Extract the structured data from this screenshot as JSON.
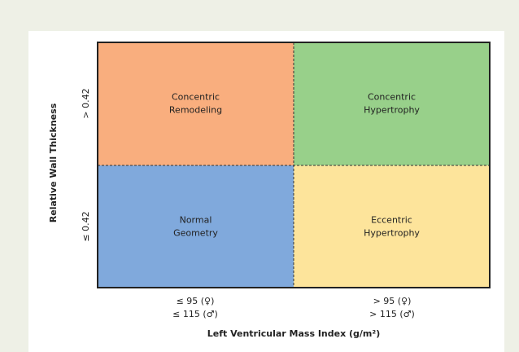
{
  "diagram": {
    "y_axis": {
      "title": "Relative Wall Thickness",
      "labels": [
        "> 0.42",
        "≤ 0.42"
      ]
    },
    "x_axis": {
      "title": "Left Ventricular Mass Index (g/m²)",
      "labels": [
        [
          "≤ 95 (♀)",
          "≤ 115 (♂)"
        ],
        [
          "> 95 (♀)",
          "> 115 (♂)"
        ]
      ]
    },
    "quadrants": [
      {
        "lines": [
          "Concentric",
          "Remodeling"
        ],
        "color": "#f9ae7e"
      },
      {
        "lines": [
          "Concentric",
          "Hypertrophy"
        ],
        "color": "#98d08a"
      },
      {
        "lines": [
          "Normal",
          "Geometry"
        ],
        "color": "#80a9dc"
      },
      {
        "lines": [
          "Eccentric",
          "Hypertrophy"
        ],
        "color": "#fde49b"
      }
    ]
  }
}
